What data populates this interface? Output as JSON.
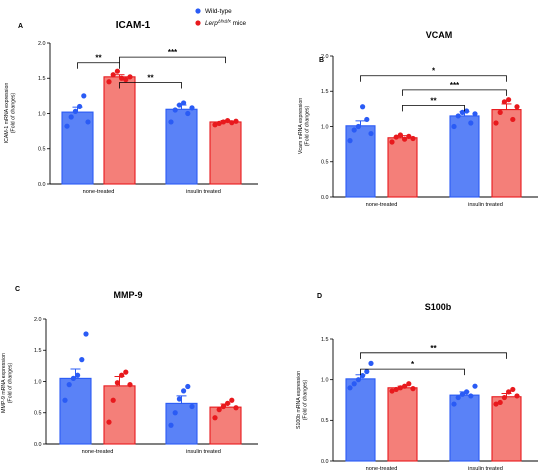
{
  "legend": {
    "series": [
      {
        "name": "Wild-type",
        "color": "#2a5bf5",
        "fill": "#5a82f7"
      },
      {
        "name_main": "Lerp",
        "name_sup": "ΔfxΔfx",
        "name_rest": " mice",
        "color": "#e8191d",
        "fill": "#f47f79"
      }
    ]
  },
  "chart_data": [
    {
      "type": "bar",
      "panel_letter": "A",
      "title": "ICAM-1",
      "ylabel_lines": [
        "ICAM-1 mRNA expression",
        "(Fold of changes)"
      ],
      "categories": [
        "none-treated",
        "insulin treated"
      ],
      "ylim": [
        0,
        2.0
      ],
      "yticks": [
        "0.0",
        "0.5",
        "1.0",
        "1.5",
        "2.0"
      ],
      "series": [
        {
          "values": [
            1.02,
            1.06
          ],
          "errors": [
            0.07,
            0.06
          ],
          "points": [
            [
              0.82,
              0.95,
              1.03,
              1.1,
              1.25,
              0.88
            ],
            [
              0.88,
              1.05,
              1.12,
              1.15,
              1.0,
              1.08
            ]
          ]
        },
        {
          "values": [
            1.52,
            0.88
          ],
          "errors": [
            0.03,
            0.02
          ],
          "points": [
            [
              1.45,
              1.55,
              1.6,
              1.5,
              1.48,
              1.52
            ],
            [
              0.84,
              0.86,
              0.88,
              0.9,
              0.87,
              0.89
            ]
          ]
        }
      ],
      "significance": [
        {
          "label": "**",
          "from": [
            0,
            0
          ],
          "to": [
            0,
            1
          ],
          "y": 1.72
        },
        {
          "label": "**",
          "from": [
            0,
            1
          ],
          "to": [
            1,
            0
          ],
          "y": 1.44
        },
        {
          "label": "***",
          "from": [
            0,
            1
          ],
          "to": [
            1,
            1
          ],
          "y": 1.8
        }
      ]
    },
    {
      "type": "bar",
      "panel_letter": "B",
      "title": "VCAM",
      "ylabel_lines": [
        "Vcam mRNA expression",
        "(Fold of changes)"
      ],
      "categories": [
        "none-treated",
        "insulin treated"
      ],
      "ylim": [
        0,
        2.0
      ],
      "yticks": [
        "0.0",
        "0.5",
        "1.0",
        "1.5",
        "2.0"
      ],
      "series": [
        {
          "values": [
            1.01,
            1.15
          ],
          "errors": [
            0.07,
            0.06
          ],
          "points": [
            [
              0.8,
              0.95,
              1.0,
              1.28,
              1.1,
              0.9
            ],
            [
              1.0,
              1.15,
              1.2,
              1.22,
              1.05,
              1.18
            ]
          ]
        },
        {
          "values": [
            0.84,
            1.24
          ],
          "errors": [
            0.03,
            0.08
          ],
          "points": [
            [
              0.78,
              0.85,
              0.88,
              0.82,
              0.86,
              0.83
            ],
            [
              1.05,
              1.2,
              1.35,
              1.38,
              1.1,
              1.28
            ]
          ]
        }
      ],
      "significance": [
        {
          "label": "*",
          "from": [
            0,
            0
          ],
          "to": [
            1,
            1
          ],
          "y": 1.72
        },
        {
          "label": "***",
          "from": [
            0,
            1
          ],
          "to": [
            1,
            1
          ],
          "y": 1.52
        },
        {
          "label": "**",
          "from": [
            0,
            1
          ],
          "to": [
            1,
            0
          ],
          "y": 1.3
        }
      ]
    },
    {
      "type": "bar",
      "panel_letter": "C",
      "title": "MMP-9",
      "ylabel_lines": [
        "MMP-9 mRNA expression",
        "(Fold of changes)"
      ],
      "categories": [
        "none-treated",
        "insulin treated"
      ],
      "ylim": [
        0,
        2.0
      ],
      "yticks": [
        "0.0",
        "0.5",
        "1.0",
        "1.5",
        "2.0"
      ],
      "series": [
        {
          "values": [
            1.05,
            0.65
          ],
          "errors": [
            0.15,
            0.12
          ],
          "points": [
            [
              0.7,
              0.95,
              1.05,
              1.1,
              1.35,
              1.76
            ],
            [
              0.3,
              0.5,
              0.72,
              0.85,
              0.92,
              0.6
            ]
          ]
        },
        {
          "values": [
            0.93,
            0.59
          ],
          "errors": [
            0.15,
            0.05
          ],
          "points": [
            [
              0.35,
              0.7,
              0.98,
              1.1,
              1.15,
              0.95
            ],
            [
              0.42,
              0.55,
              0.6,
              0.65,
              0.7,
              0.58
            ]
          ]
        }
      ],
      "significance": []
    },
    {
      "type": "bar",
      "panel_letter": "D",
      "title": "S100b",
      "ylabel_lines": [
        "S100b mRNA expression",
        "(Fold of changes)"
      ],
      "categories": [
        "none-treated",
        "insulin treated"
      ],
      "ylim": [
        0,
        1.5
      ],
      "yticks": [
        "0.0",
        "0.5",
        "1.0",
        "1.5"
      ],
      "series": [
        {
          "values": [
            1.01,
            0.81
          ],
          "errors": [
            0.05,
            0.04
          ],
          "points": [
            [
              0.9,
              0.95,
              1.0,
              1.05,
              1.1,
              1.2
            ],
            [
              0.7,
              0.78,
              0.82,
              0.85,
              0.8,
              0.92
            ]
          ]
        },
        {
          "values": [
            0.9,
            0.79
          ],
          "errors": [
            0.02,
            0.04
          ],
          "points": [
            [
              0.86,
              0.88,
              0.9,
              0.92,
              0.95,
              0.89
            ],
            [
              0.7,
              0.72,
              0.78,
              0.85,
              0.88,
              0.8
            ]
          ]
        }
      ],
      "significance": [
        {
          "label": "**",
          "from": [
            0,
            0
          ],
          "to": [
            1,
            1
          ],
          "y": 1.33
        },
        {
          "label": "*",
          "from": [
            0,
            0
          ],
          "to": [
            1,
            0
          ],
          "y": 1.13
        }
      ]
    }
  ]
}
